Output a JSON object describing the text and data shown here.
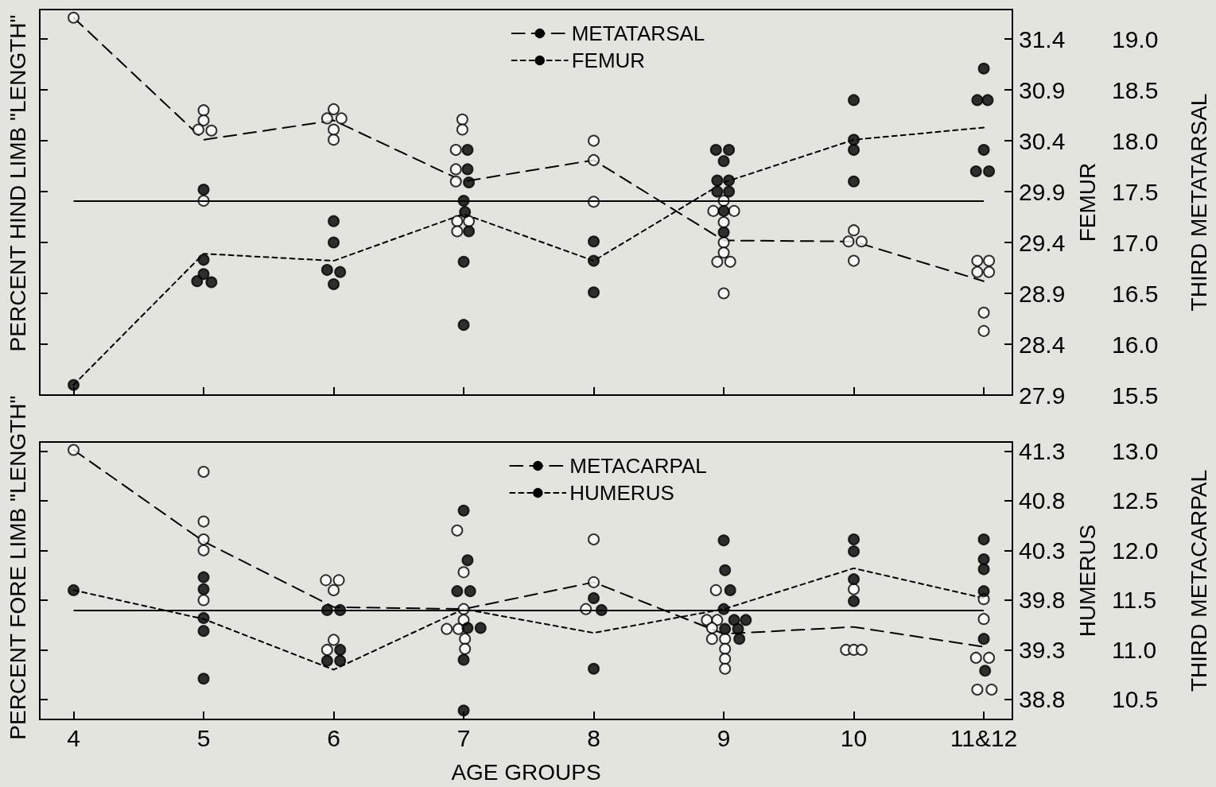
{
  "chart_data": [
    {
      "type": "scatter",
      "ylabel": "FEMUR",
      "y2label": "THIRD METATARSAL",
      "annotations": [
        "PERCENT HIND LIMB \"LENGTH\""
      ],
      "legend": "top",
      "tick_labels": "y",
      "xlim": [
        3.74,
        11.22
      ],
      "xticks": [
        4,
        5,
        6,
        7,
        8,
        9,
        10,
        11
      ],
      "ylim": [
        27.9,
        31.69
      ],
      "yticks": [
        27.9,
        28.4,
        28.9,
        29.4,
        29.9,
        30.4,
        30.9,
        31.4
      ],
      "y2lim": [
        15.5,
        19.29
      ],
      "y2ticks": [
        15.5,
        {
          "value": 16,
          "label": "16.0"
        },
        16.5,
        {
          "value": 17,
          "label": "17.0"
        },
        17.5,
        {
          "value": 18,
          "label": "18.0"
        },
        18.5,
        {
          "value": 19,
          "label": "19.0"
        }
      ],
      "ref_lines": [
        {
          "axis": "y",
          "value": 29.81,
          "color": "#000000",
          "line_style": "solid"
        }
      ],
      "series": [
        {
          "name": "METATARSAL",
          "type": "line",
          "axis": "y2",
          "color": "#000000",
          "line_style": "dashed",
          "marker": "none",
          "x": [
            4,
            5,
            6,
            7,
            8,
            9,
            10,
            11
          ],
          "values": [
            19.21,
            18.01,
            18.2,
            17.6,
            17.81,
            17.02,
            17.01,
            16.62
          ]
        },
        {
          "axis": "y2",
          "color": "#ffffff",
          "marker": "circle",
          "x": [
            4,
            5,
            5,
            4.96,
            5.06,
            5,
            6,
            5.95,
            6.06,
            6,
            6,
            6.99,
            6.99,
            6.94,
            6.94,
            6.94,
            6.95,
            7.04,
            6.95,
            8,
            8,
            8,
            9,
            8.92,
            9.08,
            9,
            9,
            9,
            8.95,
            9.05,
            9,
            10,
            9.96,
            10.06,
            10,
            10.95,
            11.04,
            10.95,
            11.04,
            11,
            11
          ],
          "values": [
            19.21,
            18.3,
            18.2,
            18.11,
            18.1,
            17.41,
            18.31,
            18.22,
            18.22,
            18.11,
            18.01,
            18.21,
            18.11,
            17.91,
            17.72,
            17.6,
            17.21,
            17.21,
            17.11,
            18.0,
            17.81,
            17.4,
            17.41,
            17.31,
            17.31,
            17.2,
            17.0,
            16.9,
            16.81,
            16.81,
            16.5,
            17.12,
            17.01,
            17.01,
            16.82,
            16.82,
            16.82,
            16.71,
            16.71,
            16.31,
            16.13
          ]
        },
        {
          "name": "FEMUR",
          "type": "line",
          "axis": "y",
          "color": "#000000",
          "line_style": "dotted",
          "marker": "none",
          "x": [
            4,
            5,
            6,
            7,
            8,
            9,
            10,
            11
          ],
          "values": [
            28.0,
            29.29,
            29.22,
            29.68,
            29.22,
            29.99,
            30.41,
            30.53
          ]
        },
        {
          "axis": "y",
          "color": "#000000",
          "marker": "circle",
          "x": [
            4,
            5,
            5,
            5,
            4.95,
            5.06,
            6,
            6,
            5.95,
            6.05,
            6,
            7.03,
            7.03,
            7.04,
            7,
            7.01,
            7.04,
            7,
            7,
            8,
            8,
            8,
            8.94,
            9.04,
            9,
            8.95,
            9.04,
            8.95,
            9.04,
            9,
            9,
            10,
            10,
            10,
            10,
            11,
            10.95,
            11.03,
            11,
            10.94,
            11.04
          ],
          "values": [
            28.0,
            29.92,
            29.23,
            29.09,
            29.02,
            29.01,
            29.61,
            29.4,
            29.13,
            29.11,
            28.99,
            30.31,
            30.12,
            29.99,
            29.81,
            29.7,
            29.51,
            29.21,
            28.59,
            29.41,
            29.22,
            28.91,
            30.31,
            30.31,
            30.2,
            30.01,
            30.01,
            29.9,
            29.9,
            29.71,
            29.5,
            30.8,
            30.41,
            30.31,
            30.0,
            31.11,
            30.8,
            30.8,
            30.31,
            30.1,
            30.1
          ]
        }
      ]
    },
    {
      "type": "scatter",
      "ylabel": "HUMERUS",
      "y2label": "THIRD METACARPAL",
      "annotations": [
        "PERCENT FORE LIMB \"LENGTH\""
      ],
      "xlabel": "AGE GROUPS",
      "legend": "top",
      "xlim": [
        3.74,
        11.22
      ],
      "xticks": [
        4,
        5,
        6,
        7,
        8,
        9,
        10,
        {
          "value": 11,
          "label": "11&12"
        }
      ],
      "ylim": [
        38.6,
        41.39
      ],
      "yticks": [
        38.8,
        39.3,
        39.8,
        40.3,
        40.8,
        41.3
      ],
      "y2lim": [
        10.3,
        13.09
      ],
      "y2ticks": [
        10.5,
        {
          "value": 11,
          "label": "11.0"
        },
        11.5,
        {
          "value": 12,
          "label": "12.0"
        },
        12.5,
        {
          "value": 13,
          "label": "13.0"
        }
      ],
      "ref_lines": [
        {
          "axis": "y",
          "value": 39.7,
          "color": "#000000",
          "line_style": "solid"
        }
      ],
      "series": [
        {
          "name": "METACARPAL",
          "type": "line",
          "axis": "y2",
          "color": "#000000",
          "line_style": "dashed",
          "marker": "none",
          "x": [
            4,
            5,
            6,
            7,
            8,
            9,
            10,
            11
          ],
          "values": [
            13.01,
            12.09,
            11.43,
            11.41,
            11.68,
            11.16,
            11.23,
            11.03
          ]
        },
        {
          "axis": "y2",
          "color": "#ffffff",
          "marker": "circle",
          "x": [
            4,
            5,
            5,
            5,
            5,
            5,
            5.94,
            6.04,
            6,
            6,
            5.95,
            6.95,
            7,
            7,
            7,
            6.87,
            6.96,
            7.01,
            7.01,
            8,
            8,
            7.94,
            8.94,
            8.87,
            8.95,
            8.91,
            8.91,
            9.01,
            9.01,
            9.01,
            9.01,
            10,
            9.94,
            10,
            10.06,
            11,
            11,
            10.94,
            11.04,
            10.95,
            11.06
          ],
          "values": [
            13.01,
            12.79,
            12.29,
            12.11,
            12.0,
            11.5,
            11.7,
            11.7,
            11.6,
            11.1,
            11.0,
            12.2,
            11.78,
            11.41,
            11.3,
            11.21,
            11.21,
            11.11,
            11.01,
            12.11,
            11.68,
            11.41,
            11.6,
            11.3,
            11.3,
            11.22,
            11.11,
            11.11,
            11.01,
            10.91,
            10.81,
            11.61,
            11.0,
            11.0,
            11.0,
            11.51,
            11.31,
            10.92,
            10.92,
            10.6,
            10.6
          ]
        },
        {
          "name": "HUMERUS",
          "type": "line",
          "axis": "y",
          "color": "#000000",
          "line_style": "dotted",
          "marker": "none",
          "x": [
            4,
            5,
            6,
            7,
            8,
            9,
            10,
            11
          ],
          "values": [
            39.9,
            39.61,
            39.1,
            39.71,
            39.47,
            39.71,
            40.12,
            39.82
          ]
        },
        {
          "axis": "y",
          "color": "#000000",
          "marker": "circle",
          "x": [
            4,
            5,
            5,
            5,
            5,
            5,
            5.95,
            6.05,
            6.05,
            5.95,
            6.05,
            7,
            7.03,
            6.95,
            7.05,
            7.03,
            7.13,
            7,
            7,
            8,
            8.06,
            8,
            9,
            9.01,
            9.05,
            9,
            9.08,
            9.17,
            9.01,
            9.11,
            9.12,
            10,
            10,
            10,
            10,
            11,
            11,
            11,
            11,
            11,
            11.01
          ],
          "values": [
            39.9,
            40.03,
            39.91,
            39.62,
            39.49,
            39.01,
            39.7,
            39.7,
            39.3,
            39.19,
            39.19,
            40.7,
            40.2,
            39.89,
            39.89,
            39.52,
            39.52,
            39.2,
            38.69,
            39.82,
            39.7,
            39.11,
            40.4,
            40.1,
            39.9,
            39.71,
            39.6,
            39.6,
            39.51,
            39.51,
            39.41,
            40.41,
            40.29,
            40.01,
            39.79,
            40.41,
            40.21,
            40.11,
            39.89,
            39.41,
            39.09
          ]
        }
      ]
    }
  ]
}
